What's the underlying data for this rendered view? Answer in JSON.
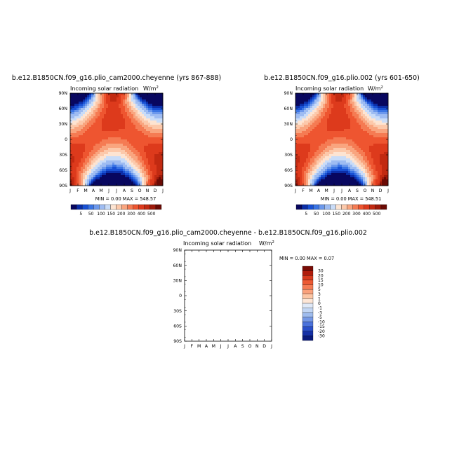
{
  "panels": [
    {
      "title": "b.e12.B1850CN.f09_g16.plio_cam2000.cheyenne (yrs 867-888)",
      "subtitle": "Incoming solar radiation",
      "units": "W/m",
      "units_sup": "2",
      "minmax": "MIN =    0.00 MAX = 548.57"
    },
    {
      "title": "b.e12.B1850CN.f09_g16.plio.002 (yrs 601-650)",
      "subtitle": "Incoming solar radiation",
      "units": "W/m",
      "units_sup": "2",
      "minmax": "MIN =    0.00 MAX = 548.51"
    },
    {
      "title": "b.e12.B1850CN.f09_g16.plio_cam2000.cheyenne - b.e12.B1850CN.f09_g16.plio.002",
      "subtitle": "Incoming solar radiation",
      "units": "W/m",
      "units_sup": "2",
      "minmax": "MIN =    0.00 MAX =    0.07"
    }
  ],
  "chart_data": [
    {
      "type": "heatmap",
      "x_tick_labels": [
        "J",
        "F",
        "M",
        "A",
        "M",
        "J",
        "J",
        "A",
        "S",
        "O",
        "N",
        "D",
        "J"
      ],
      "y_tick_labels": [
        "90N",
        "60N",
        "30N",
        "0",
        "30S",
        "60S",
        "90S"
      ],
      "x_range": [
        "J",
        "J"
      ],
      "y_range": [
        90,
        -90
      ],
      "fill": "seasonal cycle of incoming solar radiation by latitude",
      "min": 0.0,
      "max": 548.57,
      "colorbar": {
        "orientation": "horizontal",
        "labels": [
          "5",
          "50",
          "100",
          "150",
          "200",
          "300",
          "400",
          "500"
        ],
        "colors": [
          "#08075f",
          "#0b2ea8",
          "#1850d4",
          "#3a74e4",
          "#6c98ec",
          "#9ebcf2",
          "#c9dcf8",
          "#fde4d2",
          "#fcc9ab",
          "#f9a57f",
          "#f57b53",
          "#ee5530",
          "#dd3a1c",
          "#c22a11",
          "#9e1a0a",
          "#6b0a04"
        ]
      }
    },
    {
      "type": "heatmap",
      "x_tick_labels": [
        "J",
        "F",
        "M",
        "A",
        "M",
        "J",
        "J",
        "A",
        "S",
        "O",
        "N",
        "D",
        "J"
      ],
      "y_tick_labels": [
        "90N",
        "60N",
        "30N",
        "0",
        "30S",
        "60S",
        "90S"
      ],
      "x_range": [
        "J",
        "J"
      ],
      "y_range": [
        90,
        -90
      ],
      "fill": "seasonal cycle of incoming solar radiation by latitude",
      "min": 0.0,
      "max": 548.51,
      "colorbar": {
        "orientation": "horizontal",
        "labels": [
          "5",
          "50",
          "100",
          "150",
          "200",
          "300",
          "400",
          "500"
        ],
        "colors": [
          "#08075f",
          "#0b2ea8",
          "#1850d4",
          "#3a74e4",
          "#6c98ec",
          "#9ebcf2",
          "#c9dcf8",
          "#fde4d2",
          "#fcc9ab",
          "#f9a57f",
          "#f57b53",
          "#ee5530",
          "#dd3a1c",
          "#c22a11",
          "#9e1a0a",
          "#6b0a04"
        ]
      }
    },
    {
      "type": "heatmap",
      "x_tick_labels": [
        "J",
        "F",
        "M",
        "A",
        "M",
        "J",
        "J",
        "A",
        "S",
        "O",
        "N",
        "D",
        "J"
      ],
      "y_tick_labels": [
        "90N",
        "60N",
        "30N",
        "0",
        "30S",
        "60S",
        "90S"
      ],
      "x_range": [
        "J",
        "J"
      ],
      "y_range": [
        90,
        -90
      ],
      "fill": "none (blank, difference within white contour interval)",
      "min": 0.0,
      "max": 0.07,
      "colorbar": {
        "orientation": "vertical",
        "labels": [
          "30",
          "20",
          "15",
          "10",
          "5",
          "3",
          "1",
          "0",
          "-1",
          "-3",
          "-5",
          "-10",
          "-15",
          "-20",
          "-30"
        ],
        "colors": [
          "#7a0c06",
          "#b01c0c",
          "#d63a1e",
          "#ec5a34",
          "#f47c55",
          "#f9a17c",
          "#fcc6a5",
          "#fde6d6",
          "#dfe9f8",
          "#c2d6f4",
          "#9fbcee",
          "#7598e6",
          "#4b72dc",
          "#2a4fca",
          "#1530a6",
          "#0a1a7c"
        ]
      }
    }
  ]
}
